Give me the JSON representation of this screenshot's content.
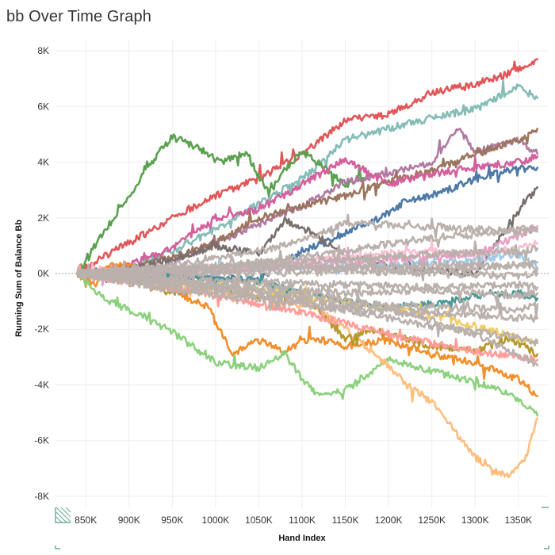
{
  "page": {
    "title": "bb Over Time Graph"
  },
  "chart_data": {
    "type": "line",
    "title": "bb Over Time Graph",
    "xlabel": "Hand Index",
    "ylabel": "Running Sum of Balance Bb",
    "xlim": [
      815000,
      1385000
    ],
    "ylim": [
      -8400,
      8400
    ],
    "x_ticks": [
      850000,
      900000,
      950000,
      1000000,
      1050000,
      1100000,
      1150000,
      1200000,
      1250000,
      1300000,
      1350000
    ],
    "x_tick_labels": [
      "850K",
      "900K",
      "950K",
      "1000K",
      "1050K",
      "1100K",
      "1150K",
      "1200K",
      "1250K",
      "1300K",
      "1350K"
    ],
    "y_ticks": [
      -8000,
      -6000,
      -4000,
      -2000,
      0,
      2000,
      4000,
      6000,
      8000
    ],
    "y_tick_labels": [
      "-8K",
      "-6K",
      "-4K",
      "-2K",
      "0K",
      "2K",
      "4K",
      "6K",
      "8K"
    ],
    "grid": true,
    "zero_reference_line": true,
    "series": [
      {
        "color": "#e15759",
        "x": [
          840000,
          870000,
          900000,
          950000,
          1000000,
          1050000,
          1100000,
          1150000,
          1200000,
          1250000,
          1300000,
          1350000,
          1372000
        ],
        "y": [
          0,
          600,
          1100,
          2000,
          2800,
          3400,
          4300,
          5500,
          5700,
          6500,
          6800,
          7300,
          7700
        ]
      },
      {
        "color": "#86bcb6",
        "x": [
          840000,
          900000,
          950000,
          1000000,
          1050000,
          1100000,
          1150000,
          1200000,
          1250000,
          1300000,
          1350000,
          1372000
        ],
        "y": [
          0,
          200,
          800,
          1600,
          2500,
          3400,
          4800,
          5200,
          5600,
          5900,
          6700,
          6300
        ]
      },
      {
        "color": "#59a14f",
        "x": [
          840000,
          870000,
          895000,
          915000,
          935000,
          950000,
          980000,
          1005000,
          1035000,
          1060000,
          1100000,
          1150000,
          1175000
        ],
        "y": [
          0,
          1500,
          2500,
          3500,
          4400,
          4900,
          4500,
          4000,
          4300,
          3000,
          4400,
          3200,
          3500
        ]
      },
      {
        "color": "#b07aa1",
        "x": [
          840000,
          900000,
          950000,
          1000000,
          1050000,
          1100000,
          1150000,
          1200000,
          1250000,
          1280000,
          1300000,
          1350000,
          1372000
        ],
        "y": [
          0,
          100,
          400,
          1100,
          1800,
          2400,
          3300,
          3600,
          4000,
          5200,
          4400,
          4800,
          4300
        ]
      },
      {
        "color": "#9c755f",
        "x": [
          840000,
          900000,
          950000,
          1000000,
          1050000,
          1100000,
          1150000,
          1200000,
          1250000,
          1300000,
          1350000,
          1372000
        ],
        "y": [
          0,
          200,
          600,
          1100,
          2000,
          2400,
          2800,
          3300,
          3700,
          4300,
          4800,
          5200
        ]
      },
      {
        "color": "#d4609d",
        "x": [
          840000,
          900000,
          950000,
          1000000,
          1050000,
          1100000,
          1150000,
          1200000,
          1250000,
          1300000,
          1350000,
          1372000
        ],
        "y": [
          0,
          300,
          900,
          2000,
          2300,
          3200,
          4100,
          3200,
          3600,
          3800,
          4000,
          4200
        ]
      },
      {
        "color": "#4e79a7",
        "x": [
          840000,
          950000,
          1050000,
          1080000,
          1100000,
          1130000,
          1160000,
          1190000,
          1220000,
          1260000,
          1300000,
          1340000,
          1372000
        ],
        "y": [
          0,
          -100,
          -200,
          400,
          800,
          1200,
          1600,
          2000,
          2600,
          2900,
          3400,
          3700,
          3800
        ]
      },
      {
        "color": "#79706e",
        "x": [
          840000,
          900000,
          950000,
          1000000,
          1050000,
          1080000,
          1110000,
          1150000,
          1200000,
          1250000,
          1300000,
          1340000,
          1372000
        ],
        "y": [
          0,
          200,
          500,
          1000,
          700,
          1900,
          1500,
          600,
          300,
          100,
          0,
          1800,
          3100
        ]
      },
      {
        "color": "#f28e2b",
        "x": [
          840000,
          860000,
          880000,
          900000,
          950000,
          990000,
          1020000,
          1050000,
          1080000,
          1110000,
          1150000,
          1200000,
          1250000,
          1300000,
          1350000,
          1372000
        ],
        "y": [
          0,
          -400,
          300,
          300,
          -600,
          -1200,
          -2900,
          -2400,
          -2800,
          -2300,
          -2600,
          -2400,
          -2900,
          -3200,
          -3800,
          -4400
        ]
      },
      {
        "color": "#8cd17d",
        "x": [
          840000,
          870000,
          900000,
          950000,
          1000000,
          1050000,
          1080000,
          1100000,
          1120000,
          1150000,
          1200000,
          1250000,
          1300000,
          1340000,
          1372000
        ],
        "y": [
          0,
          -900,
          -1300,
          -2100,
          -3200,
          -3400,
          -2900,
          -3800,
          -4400,
          -4200,
          -3100,
          -3500,
          -3900,
          -4300,
          -5100
        ]
      },
      {
        "color": "#ffbe7d",
        "x": [
          840000,
          950000,
          1050000,
          1120000,
          1150000,
          1200000,
          1220000,
          1250000,
          1280000,
          1300000,
          1320000,
          1340000,
          1360000,
          1372000
        ],
        "y": [
          0,
          -400,
          -800,
          -1300,
          -2000,
          -3300,
          -4000,
          -4600,
          -5800,
          -6600,
          -7100,
          -7300,
          -6500,
          -5200
        ]
      },
      {
        "color": "#b6992d",
        "x": [
          840000,
          900000,
          950000,
          1000000,
          1050000,
          1100000,
          1130000,
          1150000,
          1180000,
          1200000,
          1250000,
          1300000,
          1340000,
          1372000
        ],
        "y": [
          0,
          -200,
          -700,
          -500,
          -900,
          -600,
          -1700,
          -2400,
          -2000,
          -2200,
          -2600,
          -2800,
          -2300,
          -2900
        ]
      },
      {
        "color": "#499894",
        "x": [
          840000,
          950000,
          1050000,
          1100000,
          1150000,
          1200000,
          1250000,
          1300000,
          1350000,
          1372000
        ],
        "y": [
          0,
          -100,
          -300,
          -700,
          -1000,
          -1200,
          -1100,
          -800,
          -700,
          -900
        ]
      },
      {
        "color": "#ff9d9a",
        "x": [
          840000,
          900000,
          950000,
          1000000,
          1050000,
          1100000,
          1150000,
          1200000,
          1250000,
          1300000,
          1350000,
          1372000
        ],
        "y": [
          0,
          -300,
          -500,
          -800,
          -1100,
          -1400,
          -1800,
          -2200,
          -2500,
          -2800,
          -3000,
          -3100
        ]
      },
      {
        "color": "#f1ce63",
        "x": [
          840000,
          950000,
          1050000,
          1150000,
          1250000,
          1300000,
          1350000,
          1372000
        ],
        "y": [
          0,
          -300,
          -600,
          -1000,
          -1500,
          -1900,
          -2300,
          -2400
        ]
      },
      {
        "color": "#a0cbe8",
        "x": [
          840000,
          950000,
          1050000,
          1150000,
          1200000,
          1250000,
          1300000,
          1350000,
          1372000
        ],
        "y": [
          0,
          100,
          200,
          300,
          300,
          400,
          500,
          700,
          200
        ]
      },
      {
        "color": "#fabfd2",
        "x": [
          840000,
          950000,
          1050000,
          1150000,
          1200000,
          1250000,
          1300000,
          1350000,
          1372000
        ],
        "y": [
          0,
          200,
          300,
          600,
          700,
          800,
          700,
          900,
          1100
        ]
      },
      {
        "color": "#e6a0c4",
        "x": [
          840000,
          1000000,
          1100000,
          1200000,
          1300000,
          1340000,
          1372000
        ],
        "y": [
          0,
          100,
          300,
          500,
          700,
          1200,
          1700
        ]
      },
      {
        "color": "#bab0ac",
        "x": [
          840000,
          950000,
          1050000,
          1150000,
          1250000,
          1300000,
          1350000,
          1372000
        ],
        "y": [
          0,
          200,
          400,
          800,
          1300,
          1400,
          1600,
          1600
        ]
      },
      {
        "color": "#bab0ac",
        "x": [
          840000,
          950000,
          1050000,
          1100000,
          1150000,
          1250000,
          1350000,
          1372000
        ],
        "y": [
          0,
          300,
          800,
          1200,
          1800,
          1700,
          1500,
          1500
        ]
      },
      {
        "color": "#bab0ac",
        "x": [
          840000,
          950000,
          1050000,
          1150000,
          1250000,
          1350000,
          1372000
        ],
        "y": [
          0,
          100,
          400,
          500,
          700,
          800,
          900
        ]
      },
      {
        "color": "#bab0ac",
        "x": [
          840000,
          950000,
          1050000,
          1150000,
          1250000,
          1350000,
          1372000
        ],
        "y": [
          0,
          -100,
          200,
          200,
          300,
          300,
          200
        ]
      },
      {
        "color": "#bab0ac",
        "x": [
          840000,
          950000,
          1050000,
          1150000,
          1250000,
          1350000,
          1372000
        ],
        "y": [
          0,
          100,
          0,
          100,
          0,
          -100,
          0
        ]
      },
      {
        "color": "#bab0ac",
        "x": [
          840000,
          950000,
          1050000,
          1150000,
          1250000,
          1350000,
          1372000
        ],
        "y": [
          0,
          -200,
          -300,
          -400,
          -500,
          -400,
          -500
        ]
      },
      {
        "color": "#bab0ac",
        "x": [
          840000,
          950000,
          1050000,
          1150000,
          1250000,
          1350000,
          1372000
        ],
        "y": [
          0,
          -300,
          -500,
          -700,
          -600,
          -800,
          -700
        ]
      },
      {
        "color": "#bab0ac",
        "x": [
          840000,
          950000,
          1050000,
          1150000,
          1250000,
          1350000,
          1372000
        ],
        "y": [
          0,
          -400,
          -800,
          -1100,
          -1200,
          -1300,
          -1100
        ]
      },
      {
        "color": "#bab0ac",
        "x": [
          840000,
          950000,
          1050000,
          1150000,
          1250000,
          1350000,
          1372000
        ],
        "y": [
          0,
          -600,
          -900,
          -1300,
          -1400,
          -1600,
          -1600
        ]
      },
      {
        "color": "#bab0ac",
        "x": [
          840000,
          950000,
          1050000,
          1150000,
          1250000,
          1300000,
          1350000,
          1372000
        ],
        "y": [
          0,
          -300,
          -600,
          -900,
          -1700,
          -2200,
          -2900,
          -3300
        ]
      },
      {
        "color": "#bab0ac",
        "x": [
          840000,
          950000,
          1050000,
          1150000,
          1250000,
          1350000,
          1372000
        ],
        "y": [
          0,
          -200,
          -700,
          -1300,
          -1900,
          -2300,
          -2500
        ]
      },
      {
        "color": "#bab0ac",
        "x": [
          840000,
          950000,
          1050000,
          1150000,
          1250000,
          1350000,
          1372000
        ],
        "y": [
          0,
          100,
          300,
          200,
          100,
          300,
          400
        ]
      }
    ]
  }
}
